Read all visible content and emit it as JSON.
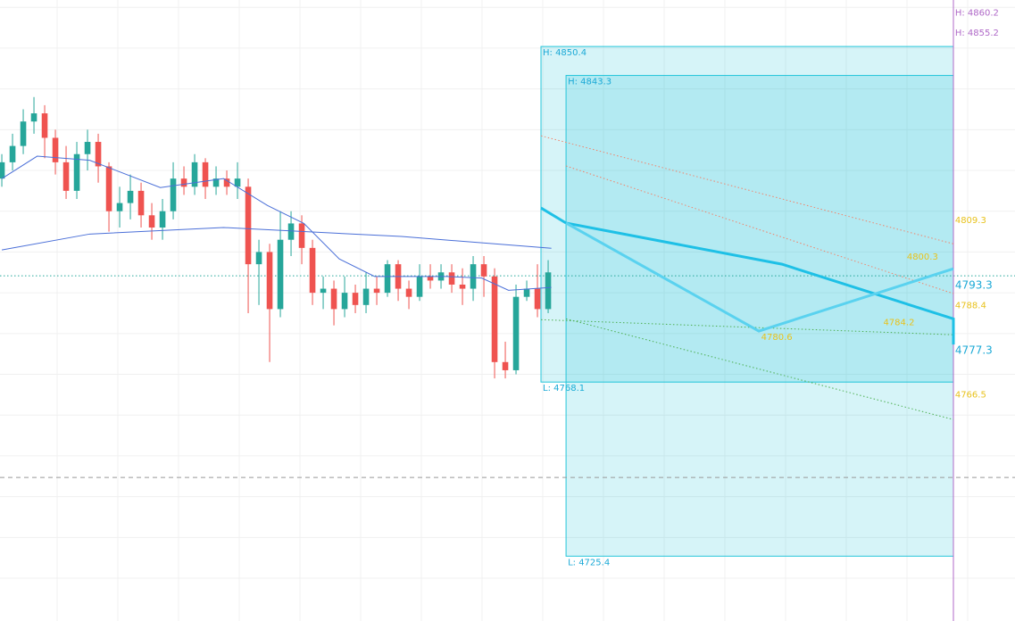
{
  "chart_data": {
    "type": "candlestick",
    "ylim": [
      4709.5,
      4861.8
    ],
    "xlim": [
      -0.17,
      94.58
    ],
    "yticks": [
      4720,
      4730,
      4740,
      4750,
      4760,
      4770,
      4780,
      4790,
      4800,
      4810,
      4820,
      4830,
      4840,
      4850,
      4860
    ],
    "grid": true,
    "up_color": "#26a69a",
    "down_color": "#ef5350",
    "candles": {
      "open": [
        4818,
        4822,
        4826,
        4832,
        4834,
        4828,
        4822,
        4815,
        4824,
        4827,
        4821,
        4810,
        4812,
        4815,
        4809,
        4806,
        4810,
        4818,
        4816,
        4822,
        4816,
        4818,
        4816,
        4816,
        4797,
        4800,
        4786,
        4803,
        4807,
        4801,
        4790,
        4791,
        4786,
        4790,
        4787,
        4791,
        4790,
        4797,
        4791,
        4789,
        4794,
        4793,
        4795,
        4792,
        4791,
        4797,
        4794,
        4773,
        4771,
        4789,
        4791,
        4786
      ],
      "high": [
        4824,
        4829,
        4835,
        4838,
        4836,
        4830,
        4826,
        4827,
        4830,
        4829,
        4822,
        4816,
        4819,
        4817,
        4812,
        4813,
        4822,
        4821,
        4824,
        4823,
        4821,
        4820,
        4822,
        4818,
        4803,
        4802,
        4810,
        4810,
        4809,
        4803,
        4794,
        4793,
        4794,
        4792,
        4795,
        4794,
        4798,
        4798,
        4793,
        4797,
        4797,
        4797,
        4797,
        4796,
        4799,
        4799,
        4796,
        4778,
        4792,
        4793,
        4797,
        4798
      ],
      "low": [
        4816,
        4820,
        4824,
        4829,
        4823,
        4819,
        4813,
        4813,
        4820,
        4817,
        4805,
        4806,
        4808,
        4806,
        4803,
        4803,
        4808,
        4814,
        4814,
        4813,
        4814,
        4814,
        4813,
        4785,
        4787,
        4773,
        4784,
        4799,
        4797,
        4787,
        4786,
        4782,
        4784,
        4785,
        4785,
        4787,
        4789,
        4788,
        4786,
        4788,
        4791,
        4791,
        4790,
        4787,
        4788,
        4789,
        4769,
        4769,
        4770,
        4788,
        4784,
        4785
      ],
      "close": [
        4822,
        4826,
        4832,
        4834,
        4828,
        4822,
        4815,
        4824,
        4827,
        4821,
        4810,
        4812,
        4815,
        4809,
        4806,
        4810,
        4818,
        4816,
        4822,
        4816,
        4818,
        4816,
        4818,
        4797,
        4800,
        4786,
        4803,
        4807,
        4801,
        4790,
        4791,
        4786,
        4790,
        4787,
        4791,
        4790,
        4797,
        4791,
        4789,
        4794,
        4793,
        4795,
        4792,
        4791,
        4797,
        4794,
        4773,
        4771,
        4789,
        4791,
        4786,
        4795
      ]
    },
    "lines": [
      {
        "color": "#4a6fd8",
        "style": "solid",
        "width": 1,
        "x": [
          0,
          3.3,
          8.2,
          14.8,
          20.7,
          24.8,
          28.2,
          31.5,
          34.8,
          41.5,
          44.8,
          47.3,
          51.3
        ],
        "values": [
          4818,
          4823.5,
          4822.5,
          4815.8,
          4818,
          4811.4,
          4807,
          4798.3,
          4794,
          4794,
          4793.6,
          4790.6,
          4791.3
        ]
      },
      {
        "color": "#4a6fd8",
        "style": "solid",
        "width": 1,
        "x": [
          0,
          8.2,
          20.7,
          37.3,
          51.3
        ],
        "values": [
          4800.5,
          4804.4,
          4806,
          4803.8,
          4800.9
        ]
      },
      {
        "color": "#f2836b",
        "style": "dotted",
        "width": 1,
        "x": [
          50.33,
          88.83
        ],
        "values": [
          4828.5,
          4802.0
        ]
      },
      {
        "color": "#f2836b",
        "style": "dotted",
        "width": 1,
        "x": [
          52.67,
          88.83
        ],
        "values": [
          4821.1,
          4789.8
        ]
      },
      {
        "color": "#4caf50",
        "style": "dotted",
        "width": 1,
        "x": [
          50.33,
          88.83
        ],
        "values": [
          4783.4,
          4779.7
        ]
      },
      {
        "color": "#4caf50",
        "style": "dotted",
        "width": 1,
        "x": [
          52.67,
          88.83
        ],
        "values": [
          4783.6,
          4758.9
        ]
      },
      {
        "color": "#1ec0e6",
        "style": "solid",
        "width": 3,
        "x": [
          50.33,
          52.67,
          72.83,
          88.83,
          88.83
        ],
        "values": [
          4810.8,
          4807.1,
          4797.0,
          4783.6,
          4777.3
        ]
      },
      {
        "color": "#5ad2ef",
        "style": "solid",
        "width": 3,
        "x": [
          52.67,
          70.67,
          88.83
        ],
        "values": [
          4807.1,
          4780.6,
          4795.9
        ]
      }
    ],
    "boxes": [
      {
        "x0": 50.33,
        "x1": 88.83,
        "high": 4850.4,
        "low": 4768.1,
        "high_label": "H: 4850.4",
        "low_label": "L: 4768.1"
      },
      {
        "x0": 52.67,
        "x1": 88.83,
        "high": 4843.3,
        "low": 4725.4,
        "high_label": "H: 4843.3",
        "low_label": "L: 4725.4"
      }
    ],
    "hlines": [
      {
        "value": 4794.15,
        "color": "#26a69a",
        "style": "dotted"
      },
      {
        "value": 4744.7,
        "color": "#999999",
        "style": "dashed"
      }
    ],
    "vlines": [
      {
        "x": 88.83,
        "color": "#b06ac8"
      }
    ],
    "annotations": [
      {
        "value": 4860.2,
        "label": "H: 4860.2",
        "x": 88.9,
        "color": "#b06ac8"
      },
      {
        "value": 4855.2,
        "label": "H: 4855.2",
        "x": 88.9,
        "color": "#b06ac8"
      },
      {
        "value": 4809.3,
        "x": 88.9,
        "color": "#e8c21c"
      },
      {
        "value": 4800.3,
        "x": 84.4,
        "color": "#e8c21c"
      },
      {
        "value": 4793.3,
        "x": 88.9,
        "color": "#1ba9d6",
        "big": true
      },
      {
        "value": 4788.4,
        "x": 88.9,
        "color": "#e8c21c"
      },
      {
        "value": 4784.2,
        "x": 82.2,
        "color": "#e8c21c"
      },
      {
        "value": 4780.6,
        "x": 70.8,
        "color": "#e8c21c"
      },
      {
        "value": 4777.3,
        "x": 88.9,
        "color": "#1ba9d6",
        "big": true
      },
      {
        "value": 4766.5,
        "x": 88.9,
        "color": "#e8c21c"
      }
    ]
  }
}
